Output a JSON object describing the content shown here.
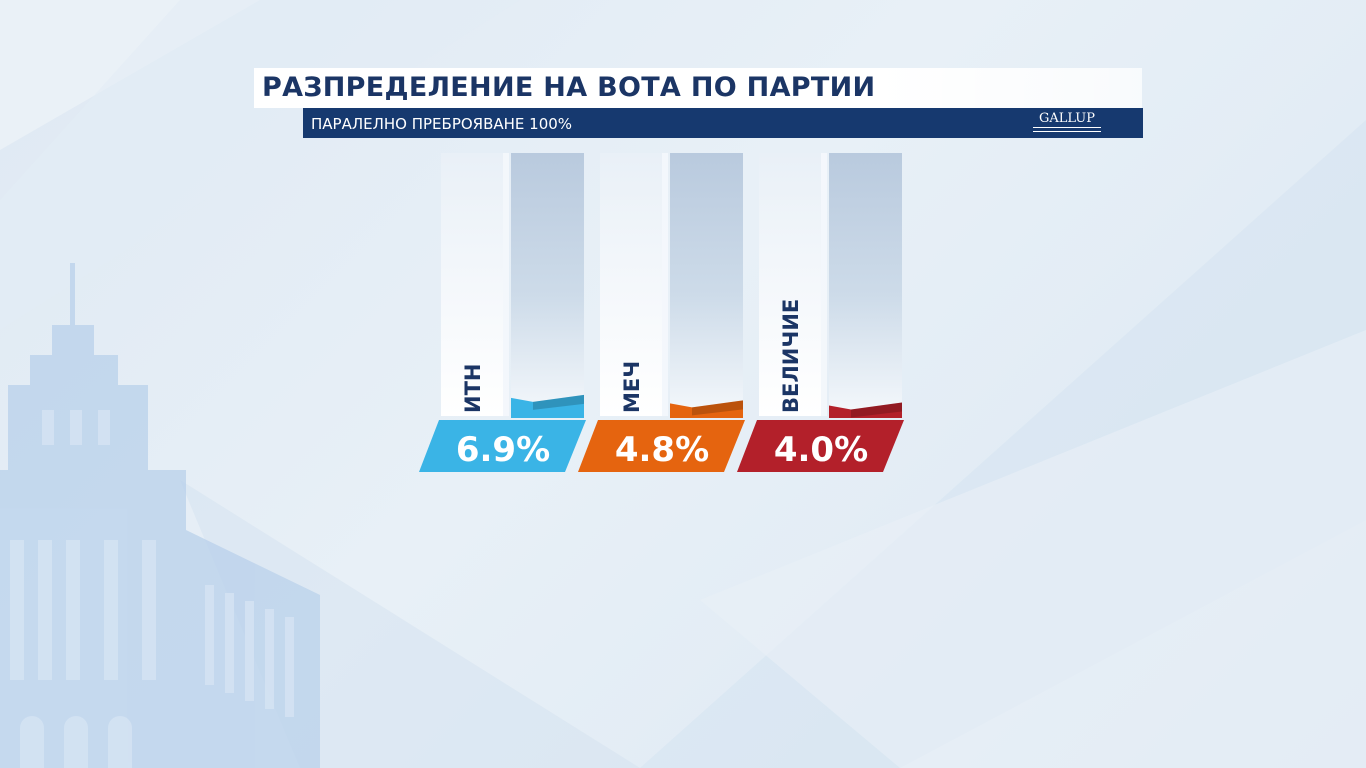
{
  "header": {
    "title": "РАЗПРЕДЕЛЕНИЕ НА ВОТА ПО ПАРТИИ",
    "subtitle": "ПАРАЛЕЛНО ПРЕБРОЯВАНЕ 100%",
    "logo": "GALLUP"
  },
  "chart_data": {
    "type": "bar",
    "title": "РАЗПРЕДЕЛЕНИЕ НА ВОТА ПО ПАРТИИ",
    "subtitle": "ПАРАЛЕЛНО ПРЕБРОЯВАНЕ 100%",
    "categories": [
      "ИТН",
      "МЕЧ",
      "ВЕЛИЧИЕ"
    ],
    "values": [
      6.9,
      4.8,
      4.0
    ],
    "value_labels": [
      "6.9%",
      "4.8%",
      "4.0%"
    ],
    "colors": [
      "#3ab4e6",
      "#e5640f",
      "#b3202a"
    ],
    "ylim": [
      0,
      100
    ],
    "grid": false,
    "legend": "none"
  }
}
